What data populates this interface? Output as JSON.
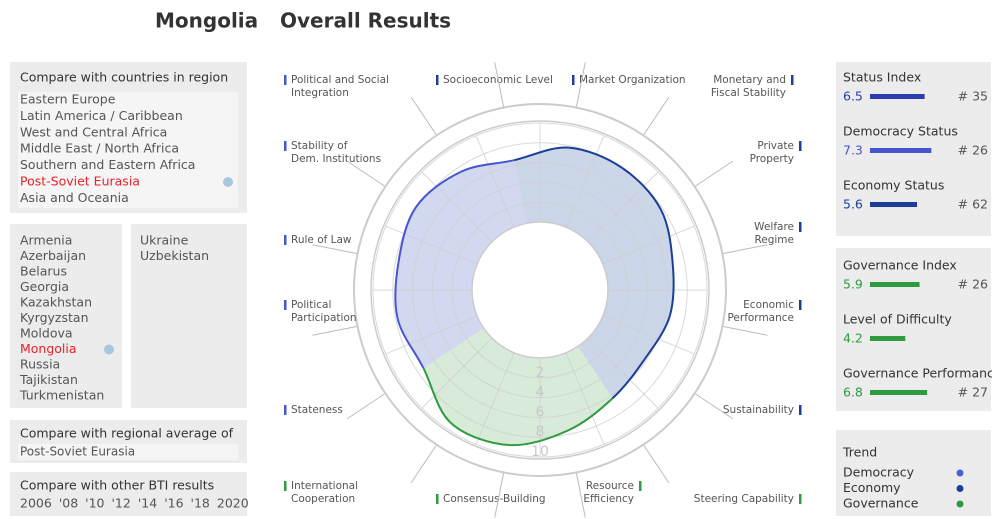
{
  "header": {
    "country": "Mongolia",
    "title": "Overall Results"
  },
  "regions": {
    "title": "Compare with countries in region",
    "items": [
      "Eastern Europe",
      "Latin America / Caribbean",
      "West and Central Africa",
      "Middle East / North Africa",
      "Southern and Eastern Africa",
      "Post-Soviet Eurasia",
      "Asia and Oceania"
    ],
    "selected": 5
  },
  "countries": {
    "column1": [
      "Armenia",
      "Azerbaijan",
      "Belarus",
      "Georgia",
      "Kazakhstan",
      "Kyrgyzstan",
      "Moldova",
      "Mongolia",
      "Russia",
      "Tajikistan",
      "Turkmenistan"
    ],
    "column2": [
      "Ukraine",
      "Uzbekistan"
    ],
    "selected": 7
  },
  "regional_average": {
    "title": "Compare with regional average of",
    "value": "Post-Soviet Eurasia"
  },
  "other_results": {
    "title": "Compare with other BTI results",
    "years": [
      "2006",
      "'08",
      "'10",
      "'12",
      "'14",
      "'16",
      "'18",
      "2020"
    ]
  },
  "chart_data": {
    "type": "radar",
    "categories": [
      "Socioeconomic Level",
      "Market Organization",
      "Monetary and Fiscal Stability",
      "Private Property",
      "Welfare Regime",
      "Economic Performance",
      "Sustainability",
      "Steering Capability",
      "Resource Efficiency",
      "Consensus-Building",
      "International Cooperation",
      "Stateness",
      "Political Participation",
      "Rule of Law",
      "Stability of Dem. Institutions",
      "Political and Social Integration"
    ],
    "values": [
      6.5,
      7.8,
      8.0,
      7.8,
      6.8,
      6.5,
      5.8,
      6.3,
      7.6,
      9.1,
      9.3,
      7.3,
      7.8,
      7.7,
      8.2,
      7.5
    ],
    "line_colors": [
      "#1b3f98",
      "#1b3f98",
      "#1b3f98",
      "#1b3f98",
      "#1b3f98",
      "#1b3f98",
      "#1b3f98",
      "#2e9b40",
      "#2e9b40",
      "#2e9b40",
      "#2e9b40",
      "#4656cc",
      "#4656cc",
      "#4656cc",
      "#4656cc",
      "#4656cc"
    ],
    "fill_colors": [
      "#cbd6e8",
      "#cbd6e8",
      "#cbd6e8",
      "#cbd6e8",
      "#cbd6e8",
      "#cbd6e8",
      "#cbd6e8",
      "#d8ebd8",
      "#d8ebd8",
      "#d8ebd8",
      "#d8ebd8",
      "#d2d8f0",
      "#d2d8f0",
      "#d2d8f0",
      "#d2d8f0",
      "#d2d8f0"
    ],
    "rlim": [
      0,
      10
    ],
    "rticks": [
      2,
      4,
      6,
      8,
      10
    ]
  },
  "status_panel": [
    {
      "name": "Status Index",
      "value": 6.5,
      "rank": "# 35",
      "color": "#2b3db0"
    },
    {
      "name": "Democracy Status",
      "value": 7.3,
      "rank": "# 26",
      "color": "#4656cc"
    },
    {
      "name": "Economy Status",
      "value": 5.6,
      "rank": "# 62",
      "color": "#1b3f98"
    }
  ],
  "governance_panel": [
    {
      "name": "Governance Index",
      "value": 5.9,
      "rank": "# 26",
      "color": "#2e9b40"
    },
    {
      "name": "Level of Difficulty",
      "value": 4.2,
      "color": "#2e9b40"
    },
    {
      "name": "Governance Performance",
      "value": 6.8,
      "rank": "# 27",
      "color": "#2e9b40"
    }
  ],
  "trend": {
    "title": "Trend",
    "items": [
      {
        "name": "Democracy",
        "color": "#4a5fd0"
      },
      {
        "name": "Economy",
        "color": "#1b3f98"
      },
      {
        "name": "Governance",
        "color": "#2e9b40"
      }
    ]
  }
}
